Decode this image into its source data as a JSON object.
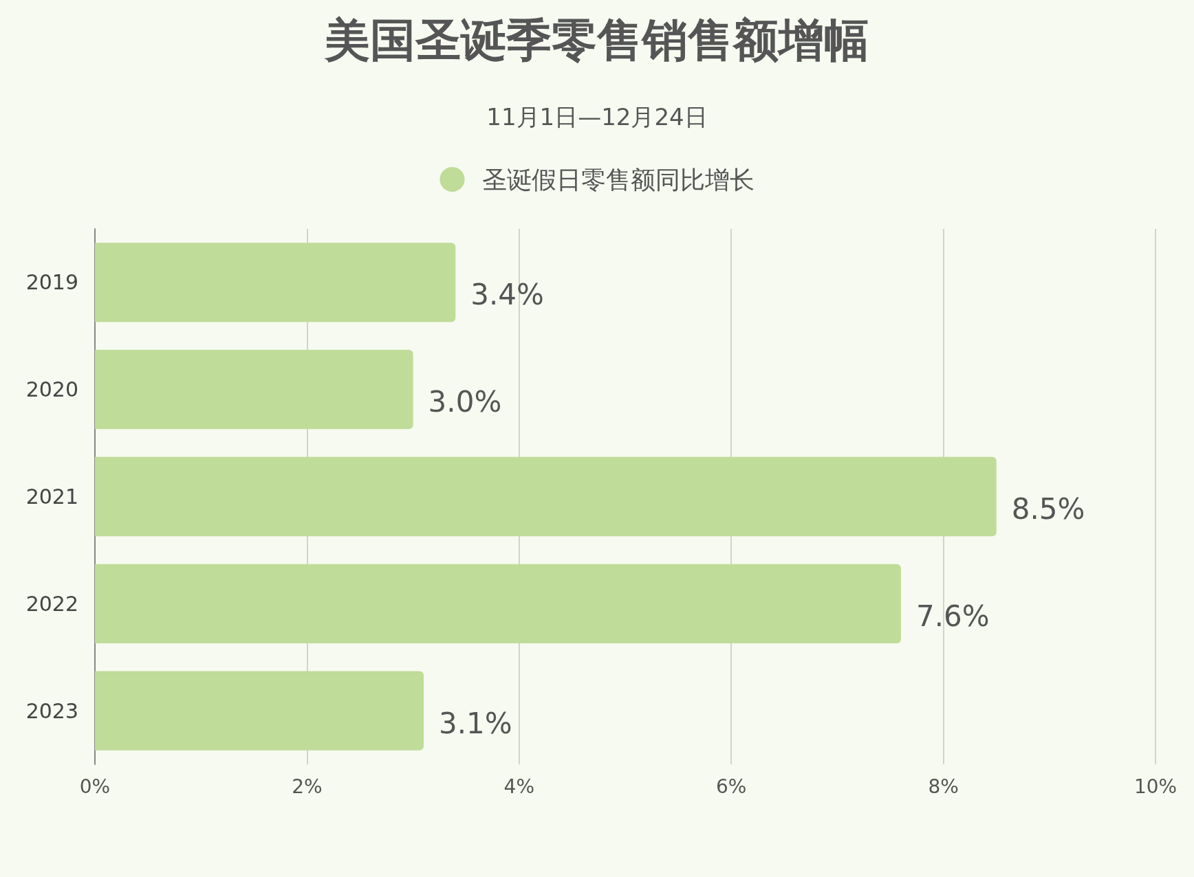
{
  "chart_data": {
    "type": "bar",
    "orientation": "horizontal",
    "title": "美国圣诞季零售销售额增幅",
    "subtitle": "11月1日—12月24日",
    "categories": [
      "2019",
      "2020",
      "2021",
      "2022",
      "2023"
    ],
    "series": [
      {
        "name": "圣诞假日零售额同比增长",
        "color": "#bfdc98",
        "values": [
          3.4,
          3.0,
          8.5,
          7.6,
          3.1
        ],
        "value_labels": [
          "3.4%",
          "3.0%",
          "8.5%",
          "7.6%",
          "3.1%"
        ]
      }
    ],
    "xlim": [
      0,
      10
    ],
    "xticks": [
      {
        "value": 0,
        "label": "0%"
      },
      {
        "value": 2,
        "label": "2%"
      },
      {
        "value": 4,
        "label": "4%"
      },
      {
        "value": 6,
        "label": "6%"
      },
      {
        "value": 8,
        "label": "8%"
      },
      {
        "value": 10,
        "label": "10%"
      }
    ],
    "grid": "x",
    "legend": "top"
  }
}
